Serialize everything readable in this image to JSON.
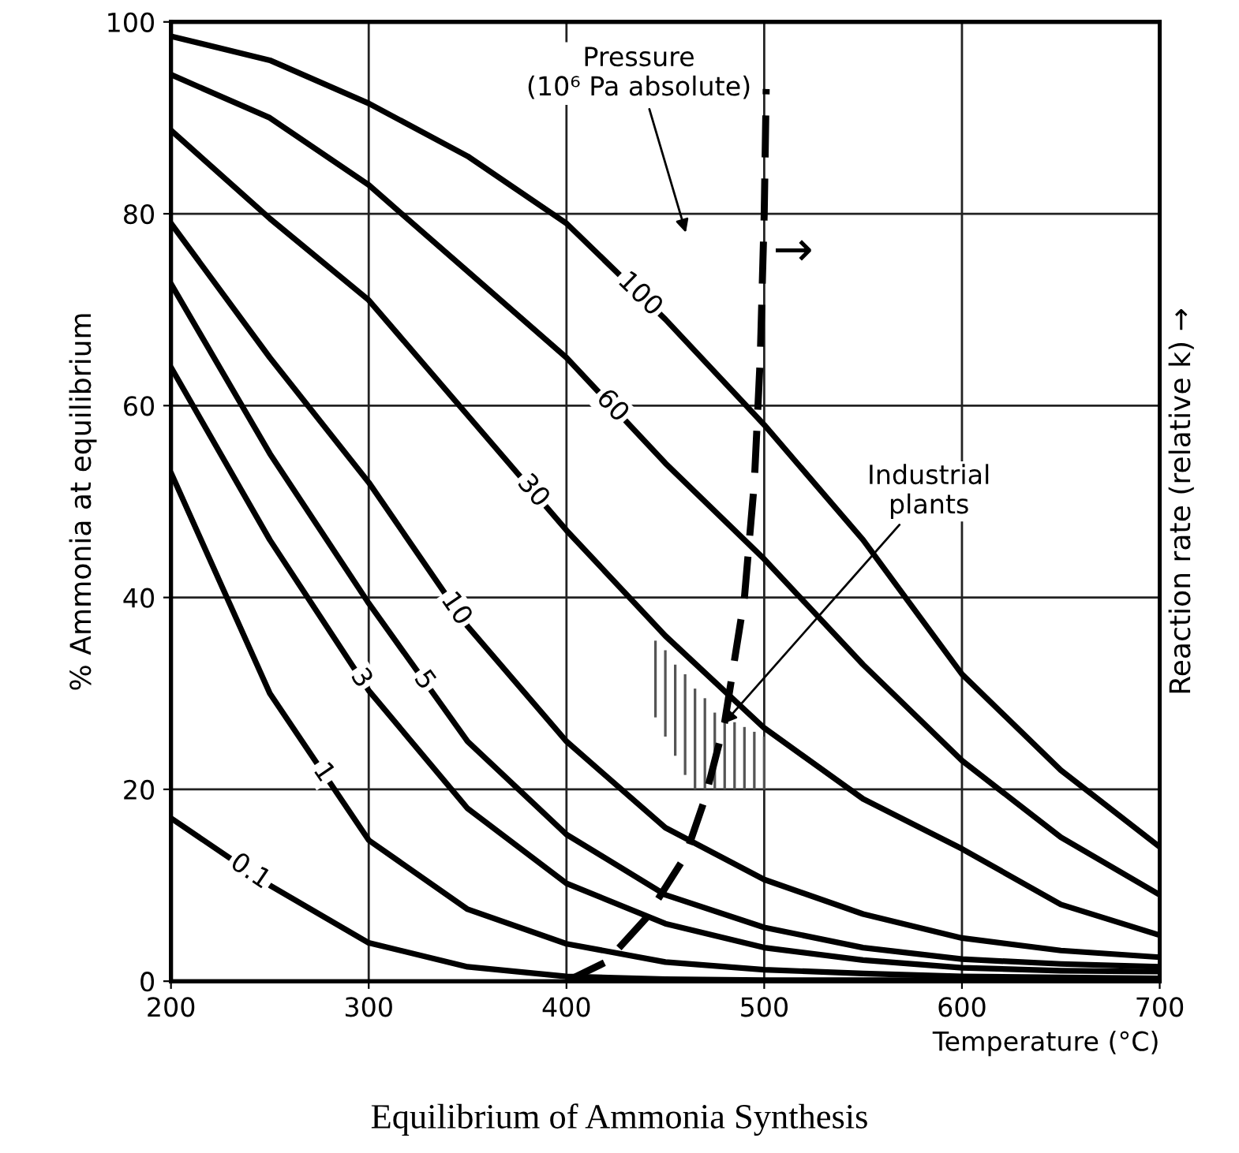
{
  "chart_data": {
    "type": "line",
    "title": "Equilibrium of Ammonia Synthesis",
    "xlabel": "Temperature (°C)",
    "ylabel": "% Ammonia at equilibrium",
    "y2label": "Reaction rate (relative k) →",
    "x": [
      200,
      250,
      300,
      350,
      400,
      450,
      500,
      550,
      600,
      650,
      700
    ],
    "series": [
      {
        "name": "0.1",
        "color": "#000000",
        "values": [
          17,
          10,
          4,
          1.5,
          0.5,
          0.2,
          0.1,
          0.1,
          0.1,
          0.1,
          0.1
        ]
      },
      {
        "name": "1",
        "color": "#000000",
        "values": [
          53,
          30,
          14.7,
          7.5,
          3.9,
          2,
          1.2,
          0.8,
          0.5,
          0.4,
          0.3
        ]
      },
      {
        "name": "3",
        "color": "#000000",
        "values": [
          64,
          46,
          30.3,
          18,
          10.2,
          6,
          3.5,
          2.2,
          1.4,
          1.1,
          1
        ]
      },
      {
        "name": "5",
        "color": "#000000",
        "values": [
          72.7,
          55,
          39.4,
          25,
          15.3,
          9,
          5.6,
          3.5,
          2.3,
          1.8,
          1.5
        ]
      },
      {
        "name": "10",
        "color": "#000000",
        "values": [
          79,
          65,
          52,
          37,
          25,
          16,
          10.6,
          7,
          4.5,
          3.2,
          2.5
        ]
      },
      {
        "name": "30",
        "color": "#000000",
        "values": [
          88.7,
          79.5,
          71,
          59,
          47,
          36,
          26.4,
          19,
          13.8,
          8,
          4.8
        ]
      },
      {
        "name": "60",
        "color": "#000000",
        "values": [
          94.5,
          90,
          83,
          74,
          65,
          54,
          44,
          33,
          23,
          15,
          9
        ]
      },
      {
        "name": "100",
        "color": "#000000",
        "values": [
          98.5,
          96,
          91.5,
          86,
          79,
          69,
          58,
          46,
          32,
          22,
          14
        ]
      },
      {
        "type": "line",
        "line_style": "dashed",
        "color": "#000000",
        "x": [
          400,
          420,
          440,
          460,
          470,
          480,
          490,
          495,
          498,
          500,
          501
        ],
        "values": [
          0,
          2,
          6.5,
          13,
          19,
          27,
          40,
          52,
          65,
          80,
          93
        ]
      },
      {
        "type": "bar",
        "color": "#555555",
        "x": [
          445,
          450,
          455,
          460,
          465,
          470,
          475,
          480,
          485,
          490,
          495,
          500
        ],
        "base": [
          27.5,
          25.5,
          23.5,
          21.5,
          20,
          20,
          20,
          20,
          20,
          20,
          20,
          20
        ],
        "values": [
          8,
          9,
          9.5,
          10.5,
          10.5,
          9.5,
          8,
          7.5,
          7,
          6.5,
          6,
          5.5
        ]
      }
    ],
    "xlim": [
      200,
      700
    ],
    "ylim": [
      0,
      100
    ],
    "xticks": [
      200,
      300,
      400,
      500,
      600,
      700
    ],
    "yticks": [
      0,
      20,
      40,
      60,
      80,
      100
    ],
    "grid": true,
    "legend": false,
    "marker": "none",
    "line_style": "solid",
    "annotations": [
      "Pressure\n(10⁶ Pa absolute)",
      {
        "text": "Industrial\nplants",
        "x": 478,
        "y": 26.5
      },
      {
        "text": "→",
        "x": 500,
        "y": 76
      }
    ]
  }
}
